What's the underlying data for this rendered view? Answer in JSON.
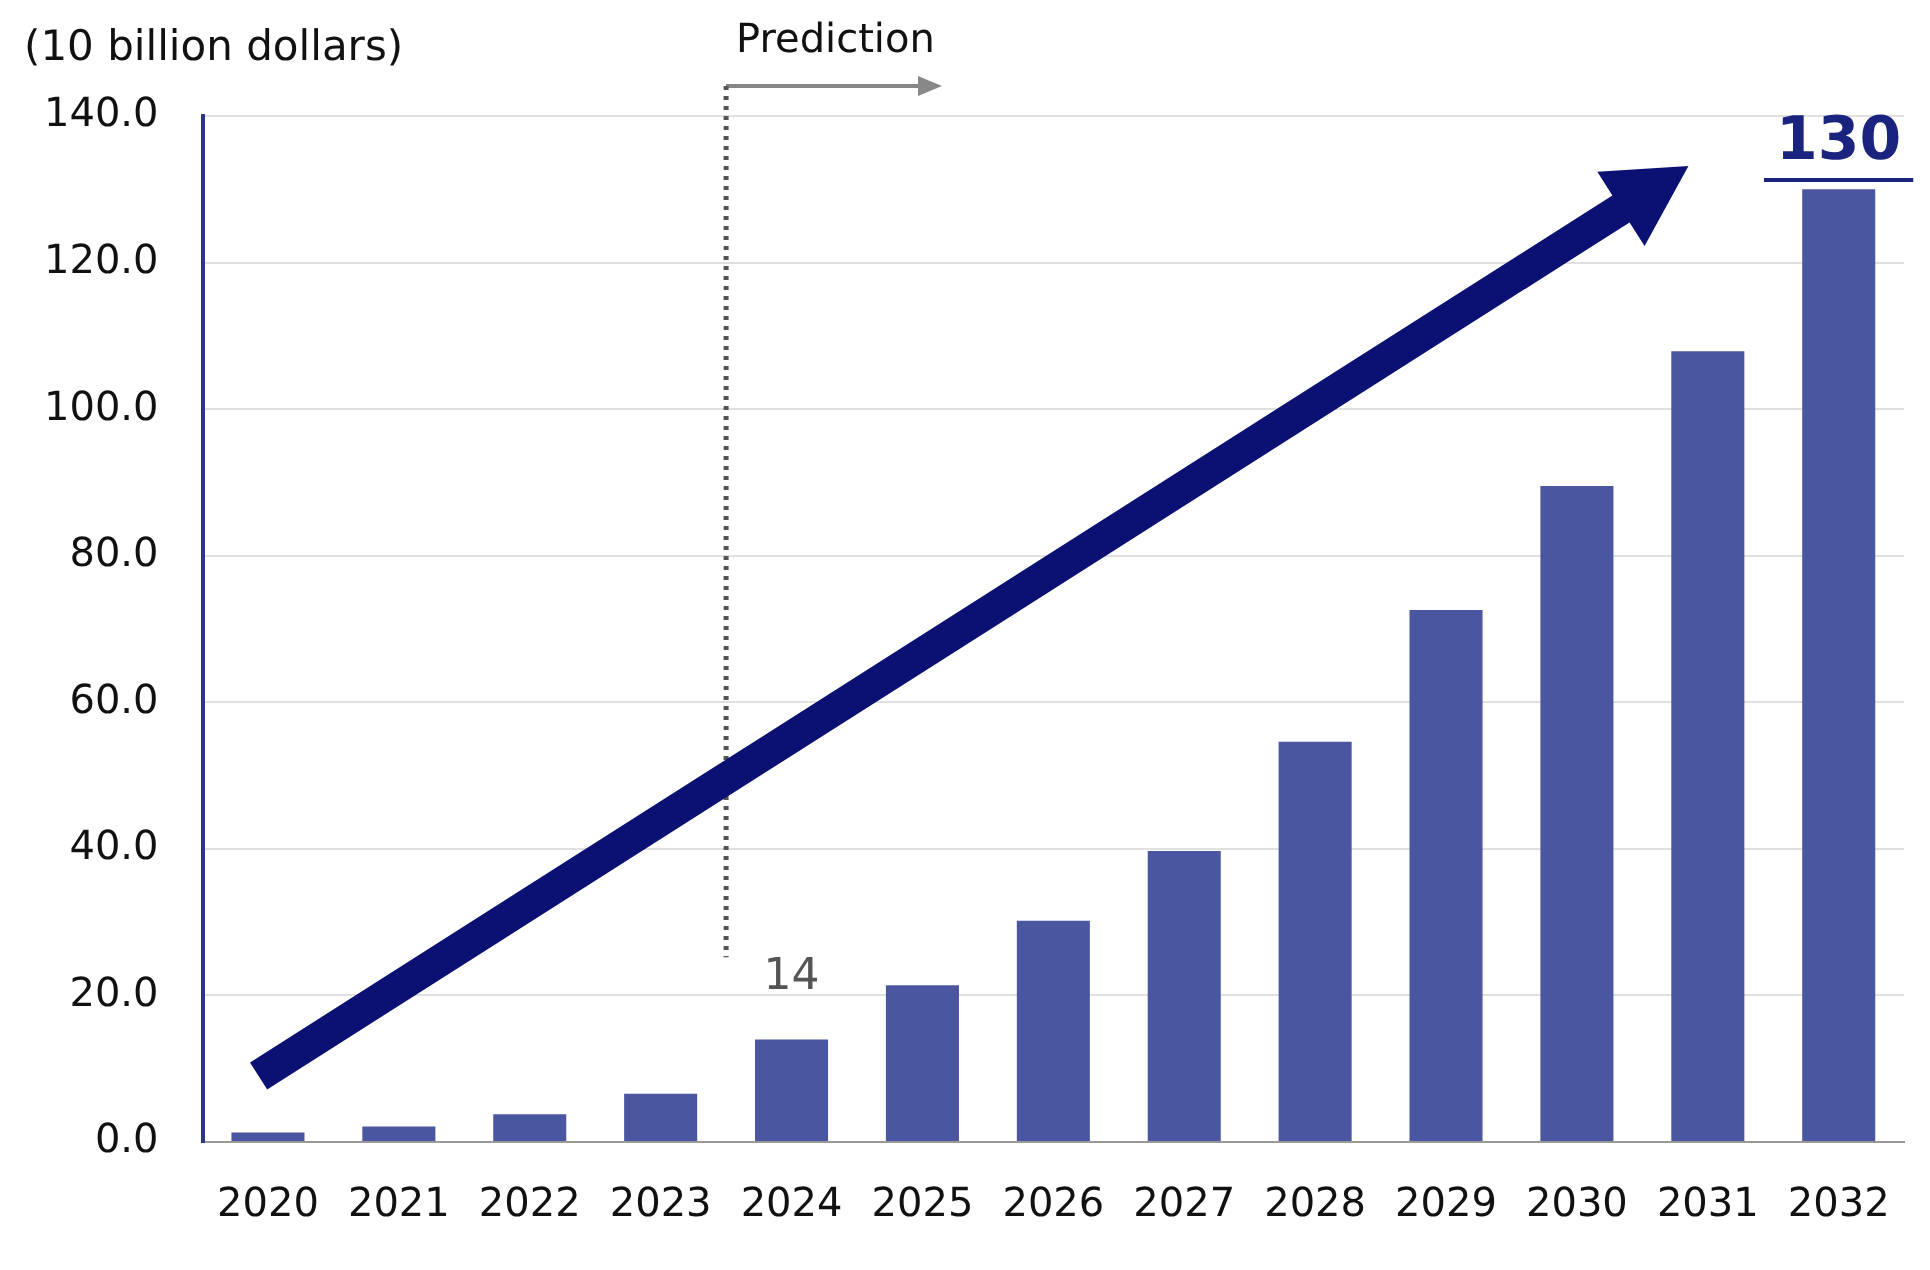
{
  "chart_data": {
    "type": "bar",
    "ylabel": "(10 billion dollars)",
    "categories": [
      "2020",
      "2021",
      "2022",
      "2023",
      "2024",
      "2025",
      "2026",
      "2027",
      "2028",
      "2029",
      "2030",
      "2031",
      "2032"
    ],
    "values": [
      1.3,
      2.1,
      3.8,
      6.6,
      14,
      21.4,
      30.2,
      39.7,
      54.6,
      72.6,
      89.5,
      107.9,
      130
    ],
    "value_labels": [
      null,
      null,
      null,
      null,
      "14",
      null,
      null,
      null,
      null,
      null,
      null,
      null,
      "130"
    ],
    "color": "#4b56a0",
    "ylim": [
      0,
      140
    ],
    "yticks": [
      {
        "value": 0,
        "label": "0.0"
      },
      {
        "value": 20,
        "label": "20.0"
      },
      {
        "value": 40,
        "label": "40.0"
      },
      {
        "value": 60,
        "label": "60.0"
      },
      {
        "value": 80,
        "label": "80.0"
      },
      {
        "value": 100,
        "label": "100.0"
      },
      {
        "value": 120,
        "label": "120.0"
      },
      {
        "value": 140,
        "label": "140.0"
      }
    ],
    "grid": "y",
    "ref_lines": [
      {
        "axis": "x",
        "value": "2024",
        "label": "Prediction",
        "color": "#555555",
        "line_style": "dotted"
      }
    ]
  }
}
